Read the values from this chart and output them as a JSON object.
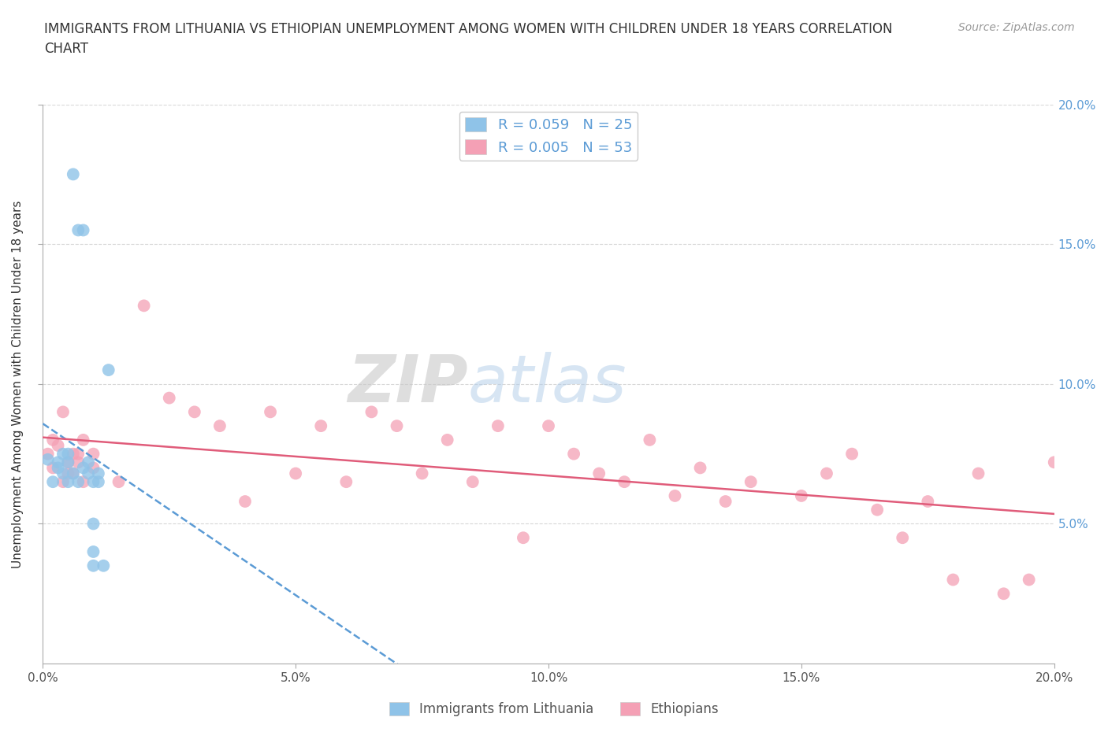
{
  "title": "IMMIGRANTS FROM LITHUANIA VS ETHIOPIAN UNEMPLOYMENT AMONG WOMEN WITH CHILDREN UNDER 18 YEARS CORRELATION\nCHART",
  "source": "Source: ZipAtlas.com",
  "ylabel": "Unemployment Among Women with Children Under 18 years",
  "xlabel": "",
  "xlim": [
    0.0,
    0.2
  ],
  "ylim": [
    0.0,
    0.2
  ],
  "xticks": [
    0.0,
    0.05,
    0.1,
    0.15,
    0.2
  ],
  "yticks": [
    0.05,
    0.1,
    0.15,
    0.2
  ],
  "xticklabels": [
    "0.0%",
    "5.0%",
    "10.0%",
    "15.0%",
    "20.0%"
  ],
  "yticklabels": [
    "5.0%",
    "10.0%",
    "15.0%",
    "20.0%"
  ],
  "legend_R1": "R = 0.059",
  "legend_N1": "N = 25",
  "legend_R2": "R = 0.005",
  "legend_N2": "N = 53",
  "color_blue": "#8fc3e8",
  "color_pink": "#f4a0b5",
  "color_trendline_blue": "#5b9bd5",
  "color_trendline_pink": "#e05c7a",
  "watermark_zip": "ZIP",
  "watermark_atlas": "atlas",
  "grid_color": "#d8d8d8",
  "background_color": "#ffffff",
  "lithuania_x": [
    0.001,
    0.002,
    0.003,
    0.003,
    0.004,
    0.004,
    0.005,
    0.005,
    0.005,
    0.006,
    0.006,
    0.007,
    0.007,
    0.008,
    0.008,
    0.009,
    0.009,
    0.01,
    0.01,
    0.01,
    0.01,
    0.011,
    0.011,
    0.012,
    0.013
  ],
  "lithuania_y": [
    0.073,
    0.065,
    0.07,
    0.072,
    0.068,
    0.075,
    0.065,
    0.072,
    0.075,
    0.068,
    0.175,
    0.065,
    0.155,
    0.07,
    0.155,
    0.068,
    0.072,
    0.04,
    0.05,
    0.065,
    0.035,
    0.068,
    0.065,
    0.035,
    0.105
  ],
  "ethiopia_x": [
    0.001,
    0.002,
    0.002,
    0.003,
    0.004,
    0.004,
    0.005,
    0.005,
    0.006,
    0.006,
    0.007,
    0.007,
    0.008,
    0.008,
    0.01,
    0.01,
    0.015,
    0.02,
    0.025,
    0.03,
    0.035,
    0.04,
    0.045,
    0.05,
    0.055,
    0.06,
    0.065,
    0.07,
    0.075,
    0.08,
    0.085,
    0.09,
    0.095,
    0.1,
    0.105,
    0.11,
    0.115,
    0.12,
    0.125,
    0.13,
    0.135,
    0.14,
    0.15,
    0.155,
    0.16,
    0.165,
    0.17,
    0.175,
    0.18,
    0.185,
    0.19,
    0.195,
    0.2
  ],
  "ethiopia_y": [
    0.075,
    0.08,
    0.07,
    0.078,
    0.065,
    0.09,
    0.072,
    0.068,
    0.075,
    0.068,
    0.072,
    0.075,
    0.065,
    0.08,
    0.07,
    0.075,
    0.065,
    0.128,
    0.095,
    0.09,
    0.085,
    0.058,
    0.09,
    0.068,
    0.085,
    0.065,
    0.09,
    0.085,
    0.068,
    0.08,
    0.065,
    0.085,
    0.045,
    0.085,
    0.075,
    0.068,
    0.065,
    0.08,
    0.06,
    0.07,
    0.058,
    0.065,
    0.06,
    0.068,
    0.075,
    0.055,
    0.045,
    0.058,
    0.03,
    0.068,
    0.025,
    0.03,
    0.072
  ]
}
